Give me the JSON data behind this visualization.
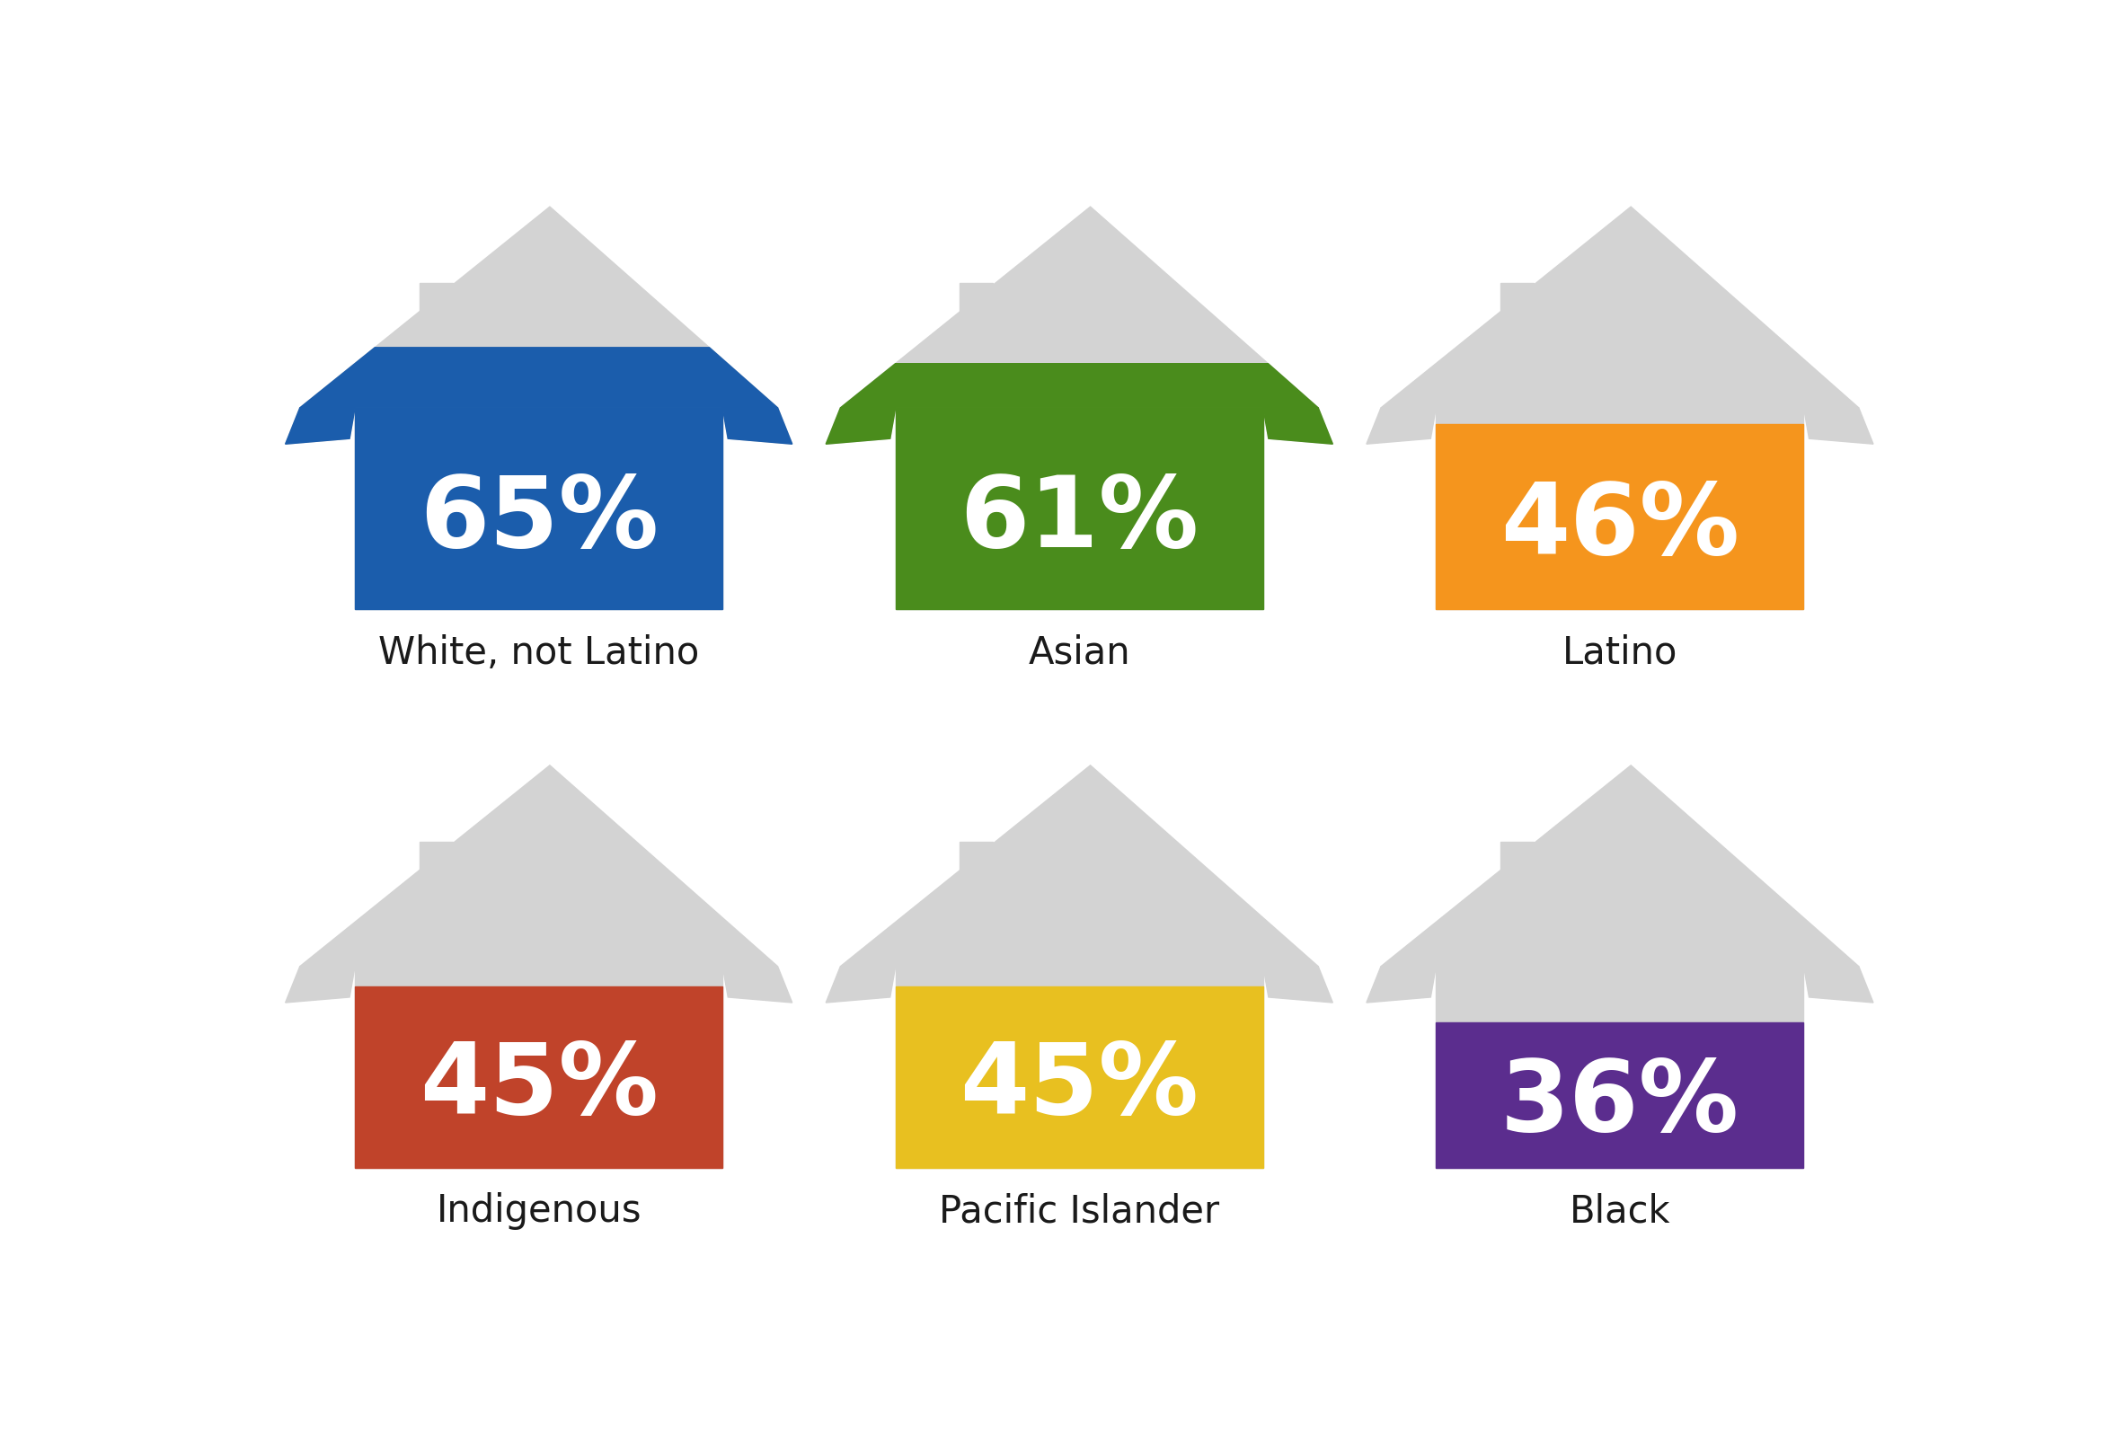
{
  "groups": [
    {
      "label": "White, not Latino",
      "pct": 65,
      "pct_str": "65%",
      "color": "#1B5DAC"
    },
    {
      "label": "Asian",
      "pct": 61,
      "pct_str": "61%",
      "color": "#4A8C1C"
    },
    {
      "label": "Latino",
      "pct": 46,
      "pct_str": "46%",
      "color": "#F5951D"
    },
    {
      "label": "Indigenous",
      "pct": 45,
      "pct_str": "45%",
      "color": "#C0432A"
    },
    {
      "label": "Pacific Islander",
      "pct": 45,
      "pct_str": "45%",
      "color": "#E8C020"
    },
    {
      "label": "Black",
      "pct": 36,
      "pct_str": "36%",
      "color": "#5B2D8E"
    }
  ],
  "house_color": "#D3D3D3",
  "text_color": "#ffffff",
  "label_color": "#1a1a1a",
  "bg_color": "#ffffff",
  "label_fontsize": 30,
  "pct_fontsize": 80,
  "grid_cols": 3,
  "grid_rows": 2
}
